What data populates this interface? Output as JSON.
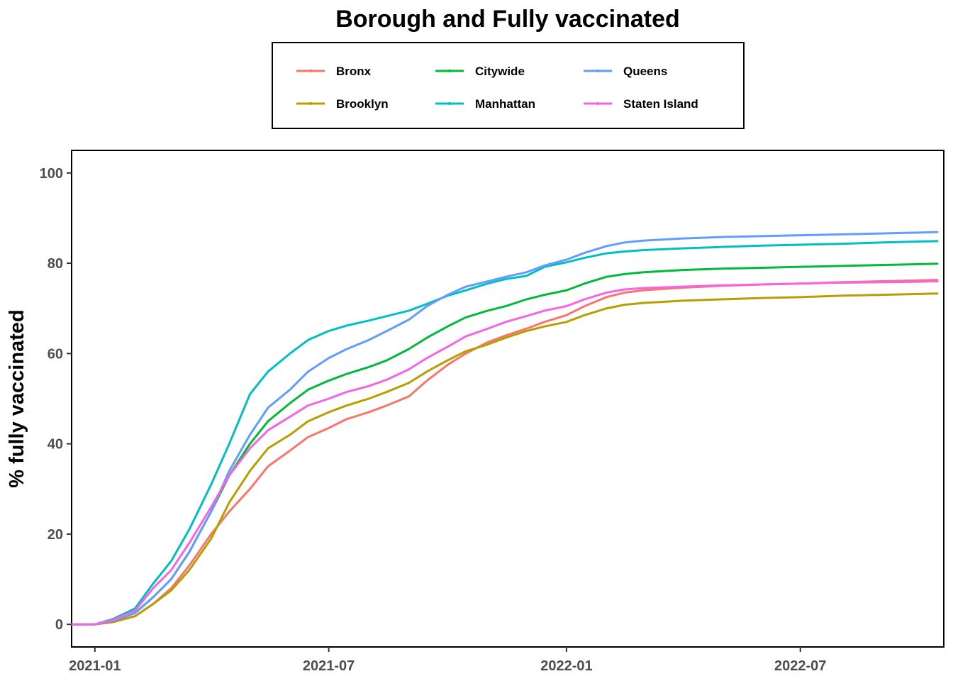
{
  "chart_data": {
    "type": "line",
    "title": "Borough and Fully vaccinated",
    "xlabel": "",
    "ylabel": "% fully vaccinated",
    "xlim": [
      "2020-12-14",
      "2022-10-20"
    ],
    "ylim": [
      -5,
      105
    ],
    "x_ticks": [
      {
        "date": "2021-01-01",
        "label": "2021-01"
      },
      {
        "date": "2021-07-01",
        "label": "2021-07"
      },
      {
        "date": "2022-01-01",
        "label": "2022-01"
      },
      {
        "date": "2022-07-01",
        "label": "2022-07"
      }
    ],
    "y_ticks": [
      0,
      20,
      40,
      60,
      80,
      100
    ],
    "grid": false,
    "legend_position": "top",
    "series": [
      {
        "name": "Bronx",
        "color": "#F8766D",
        "points": [
          [
            "2020-12-14",
            0
          ],
          [
            "2021-01-01",
            0
          ],
          [
            "2021-01-15",
            0.6
          ],
          [
            "2021-02-01",
            1.8
          ],
          [
            "2021-02-15",
            4.5
          ],
          [
            "2021-03-01",
            8
          ],
          [
            "2021-03-15",
            13
          ],
          [
            "2021-04-01",
            20
          ],
          [
            "2021-04-15",
            25
          ],
          [
            "2021-05-01",
            30
          ],
          [
            "2021-05-15",
            35
          ],
          [
            "2021-06-01",
            38.5
          ],
          [
            "2021-06-15",
            41.5
          ],
          [
            "2021-07-01",
            43.5
          ],
          [
            "2021-07-15",
            45.5
          ],
          [
            "2021-08-01",
            47
          ],
          [
            "2021-08-15",
            48.5
          ],
          [
            "2021-09-01",
            50.5
          ],
          [
            "2021-09-15",
            54
          ],
          [
            "2021-10-01",
            57.5
          ],
          [
            "2021-10-15",
            60
          ],
          [
            "2021-11-01",
            62.5
          ],
          [
            "2021-11-15",
            64
          ],
          [
            "2021-12-01",
            65.5
          ],
          [
            "2021-12-15",
            67
          ],
          [
            "2022-01-01",
            68.5
          ],
          [
            "2022-01-15",
            70.5
          ],
          [
            "2022-02-01",
            72.5
          ],
          [
            "2022-02-15",
            73.5
          ],
          [
            "2022-03-01",
            74
          ],
          [
            "2022-04-01",
            74.6
          ],
          [
            "2022-05-01",
            75
          ],
          [
            "2022-06-01",
            75.3
          ],
          [
            "2022-07-01",
            75.5
          ],
          [
            "2022-08-01",
            75.8
          ],
          [
            "2022-09-01",
            76
          ],
          [
            "2022-10-01",
            76.2
          ],
          [
            "2022-10-15",
            76.3
          ]
        ]
      },
      {
        "name": "Brooklyn",
        "color": "#B79F00",
        "points": [
          [
            "2020-12-14",
            0
          ],
          [
            "2021-01-01",
            0
          ],
          [
            "2021-01-15",
            0.5
          ],
          [
            "2021-02-01",
            1.8
          ],
          [
            "2021-02-15",
            4.5
          ],
          [
            "2021-03-01",
            7.5
          ],
          [
            "2021-03-15",
            12
          ],
          [
            "2021-04-01",
            19
          ],
          [
            "2021-04-15",
            27
          ],
          [
            "2021-05-01",
            34
          ],
          [
            "2021-05-15",
            39
          ],
          [
            "2021-06-01",
            42
          ],
          [
            "2021-06-15",
            45
          ],
          [
            "2021-07-01",
            47
          ],
          [
            "2021-07-15",
            48.5
          ],
          [
            "2021-08-01",
            50
          ],
          [
            "2021-08-15",
            51.5
          ],
          [
            "2021-09-01",
            53.5
          ],
          [
            "2021-09-15",
            56
          ],
          [
            "2021-10-01",
            58.5
          ],
          [
            "2021-10-15",
            60.5
          ],
          [
            "2021-11-01",
            62
          ],
          [
            "2021-11-15",
            63.5
          ],
          [
            "2021-12-01",
            65
          ],
          [
            "2021-12-15",
            66
          ],
          [
            "2022-01-01",
            67
          ],
          [
            "2022-01-15",
            68.5
          ],
          [
            "2022-02-01",
            70
          ],
          [
            "2022-02-15",
            70.8
          ],
          [
            "2022-03-01",
            71.2
          ],
          [
            "2022-04-01",
            71.7
          ],
          [
            "2022-05-01",
            72
          ],
          [
            "2022-06-01",
            72.3
          ],
          [
            "2022-07-01",
            72.5
          ],
          [
            "2022-08-01",
            72.8
          ],
          [
            "2022-09-01",
            73
          ],
          [
            "2022-10-01",
            73.2
          ],
          [
            "2022-10-15",
            73.3
          ]
        ]
      },
      {
        "name": "Citywide",
        "color": "#00BA38",
        "points": [
          [
            "2020-12-14",
            0
          ],
          [
            "2021-01-01",
            0
          ],
          [
            "2021-01-15",
            0.8
          ],
          [
            "2021-02-01",
            2.5
          ],
          [
            "2021-02-15",
            6
          ],
          [
            "2021-03-01",
            10
          ],
          [
            "2021-03-15",
            16
          ],
          [
            "2021-04-01",
            25
          ],
          [
            "2021-04-15",
            33
          ],
          [
            "2021-05-01",
            40
          ],
          [
            "2021-05-15",
            45
          ],
          [
            "2021-06-01",
            49
          ],
          [
            "2021-06-15",
            52
          ],
          [
            "2021-07-01",
            54
          ],
          [
            "2021-07-15",
            55.5
          ],
          [
            "2021-08-01",
            57
          ],
          [
            "2021-08-15",
            58.5
          ],
          [
            "2021-09-01",
            61
          ],
          [
            "2021-09-15",
            63.5
          ],
          [
            "2021-10-01",
            66
          ],
          [
            "2021-10-15",
            68
          ],
          [
            "2021-11-01",
            69.5
          ],
          [
            "2021-11-15",
            70.5
          ],
          [
            "2021-12-01",
            72
          ],
          [
            "2021-12-15",
            73
          ],
          [
            "2022-01-01",
            74
          ],
          [
            "2022-01-15",
            75.5
          ],
          [
            "2022-02-01",
            77
          ],
          [
            "2022-02-15",
            77.6
          ],
          [
            "2022-03-01",
            78
          ],
          [
            "2022-04-01",
            78.5
          ],
          [
            "2022-05-01",
            78.8
          ],
          [
            "2022-06-01",
            79
          ],
          [
            "2022-07-01",
            79.2
          ],
          [
            "2022-08-01",
            79.4
          ],
          [
            "2022-09-01",
            79.6
          ],
          [
            "2022-10-01",
            79.8
          ],
          [
            "2022-10-15",
            79.9
          ]
        ]
      },
      {
        "name": "Manhattan",
        "color": "#00BFC4",
        "points": [
          [
            "2020-12-14",
            0
          ],
          [
            "2021-01-01",
            0
          ],
          [
            "2021-01-15",
            1.2
          ],
          [
            "2021-02-01",
            3.5
          ],
          [
            "2021-02-15",
            9
          ],
          [
            "2021-03-01",
            14
          ],
          [
            "2021-03-15",
            21
          ],
          [
            "2021-04-01",
            31
          ],
          [
            "2021-04-15",
            40
          ],
          [
            "2021-05-01",
            51
          ],
          [
            "2021-05-15",
            56
          ],
          [
            "2021-06-01",
            60
          ],
          [
            "2021-06-15",
            63
          ],
          [
            "2021-07-01",
            65
          ],
          [
            "2021-07-15",
            66.2
          ],
          [
            "2021-08-01",
            67.3
          ],
          [
            "2021-08-15",
            68.3
          ],
          [
            "2021-09-01",
            69.5
          ],
          [
            "2021-09-15",
            71
          ],
          [
            "2021-10-01",
            72.8
          ],
          [
            "2021-10-15",
            74
          ],
          [
            "2021-11-01",
            75.5
          ],
          [
            "2021-11-15",
            76.5
          ],
          [
            "2021-12-01",
            77.2
          ],
          [
            "2021-12-15",
            79.2
          ],
          [
            "2022-01-01",
            80.2
          ],
          [
            "2022-01-15",
            81.2
          ],
          [
            "2022-02-01",
            82.2
          ],
          [
            "2022-02-15",
            82.6
          ],
          [
            "2022-03-01",
            82.9
          ],
          [
            "2022-04-01",
            83.3
          ],
          [
            "2022-05-01",
            83.6
          ],
          [
            "2022-06-01",
            83.9
          ],
          [
            "2022-07-01",
            84.1
          ],
          [
            "2022-08-01",
            84.3
          ],
          [
            "2022-09-01",
            84.6
          ],
          [
            "2022-10-01",
            84.8
          ],
          [
            "2022-10-15",
            84.9
          ]
        ]
      },
      {
        "name": "Queens",
        "color": "#619CFF",
        "points": [
          [
            "2020-12-14",
            0
          ],
          [
            "2021-01-01",
            0
          ],
          [
            "2021-01-15",
            0.8
          ],
          [
            "2021-02-01",
            2.5
          ],
          [
            "2021-02-15",
            6
          ],
          [
            "2021-03-01",
            10
          ],
          [
            "2021-03-15",
            16
          ],
          [
            "2021-04-01",
            25
          ],
          [
            "2021-04-15",
            34
          ],
          [
            "2021-05-01",
            42
          ],
          [
            "2021-05-15",
            48
          ],
          [
            "2021-06-01",
            52
          ],
          [
            "2021-06-15",
            56
          ],
          [
            "2021-07-01",
            59
          ],
          [
            "2021-07-15",
            61
          ],
          [
            "2021-08-01",
            63
          ],
          [
            "2021-08-15",
            65
          ],
          [
            "2021-09-01",
            67.5
          ],
          [
            "2021-09-15",
            70.5
          ],
          [
            "2021-10-01",
            73
          ],
          [
            "2021-10-15",
            74.8
          ],
          [
            "2021-11-01",
            76
          ],
          [
            "2021-11-15",
            77
          ],
          [
            "2021-12-01",
            78
          ],
          [
            "2021-12-15",
            79.5
          ],
          [
            "2022-01-01",
            80.8
          ],
          [
            "2022-01-15",
            82.3
          ],
          [
            "2022-02-01",
            83.8
          ],
          [
            "2022-02-15",
            84.6
          ],
          [
            "2022-03-01",
            85
          ],
          [
            "2022-04-01",
            85.5
          ],
          [
            "2022-05-01",
            85.8
          ],
          [
            "2022-06-01",
            86
          ],
          [
            "2022-07-01",
            86.2
          ],
          [
            "2022-08-01",
            86.4
          ],
          [
            "2022-09-01",
            86.6
          ],
          [
            "2022-10-01",
            86.8
          ],
          [
            "2022-10-15",
            86.9
          ]
        ]
      },
      {
        "name": "Staten Island",
        "color": "#F564E3",
        "points": [
          [
            "2020-12-14",
            0
          ],
          [
            "2021-01-01",
            0
          ],
          [
            "2021-01-15",
            1
          ],
          [
            "2021-02-01",
            3
          ],
          [
            "2021-02-15",
            8
          ],
          [
            "2021-03-01",
            12
          ],
          [
            "2021-03-15",
            18
          ],
          [
            "2021-04-01",
            26
          ],
          [
            "2021-04-15",
            33
          ],
          [
            "2021-05-01",
            39
          ],
          [
            "2021-05-15",
            43
          ],
          [
            "2021-06-01",
            46
          ],
          [
            "2021-06-15",
            48.5
          ],
          [
            "2021-07-01",
            50
          ],
          [
            "2021-07-15",
            51.5
          ],
          [
            "2021-08-01",
            52.8
          ],
          [
            "2021-08-15",
            54.2
          ],
          [
            "2021-09-01",
            56.5
          ],
          [
            "2021-09-15",
            59
          ],
          [
            "2021-10-01",
            61.5
          ],
          [
            "2021-10-15",
            63.8
          ],
          [
            "2021-11-01",
            65.5
          ],
          [
            "2021-11-15",
            67
          ],
          [
            "2021-12-01",
            68.3
          ],
          [
            "2021-12-15",
            69.5
          ],
          [
            "2022-01-01",
            70.5
          ],
          [
            "2022-01-15",
            72
          ],
          [
            "2022-02-01",
            73.5
          ],
          [
            "2022-02-15",
            74.2
          ],
          [
            "2022-03-01",
            74.5
          ],
          [
            "2022-04-01",
            74.8
          ],
          [
            "2022-05-01",
            75.1
          ],
          [
            "2022-06-01",
            75.3
          ],
          [
            "2022-07-01",
            75.5
          ],
          [
            "2022-08-01",
            75.7
          ],
          [
            "2022-09-01",
            75.8
          ],
          [
            "2022-10-01",
            75.9
          ],
          [
            "2022-10-15",
            76
          ]
        ]
      }
    ]
  }
}
